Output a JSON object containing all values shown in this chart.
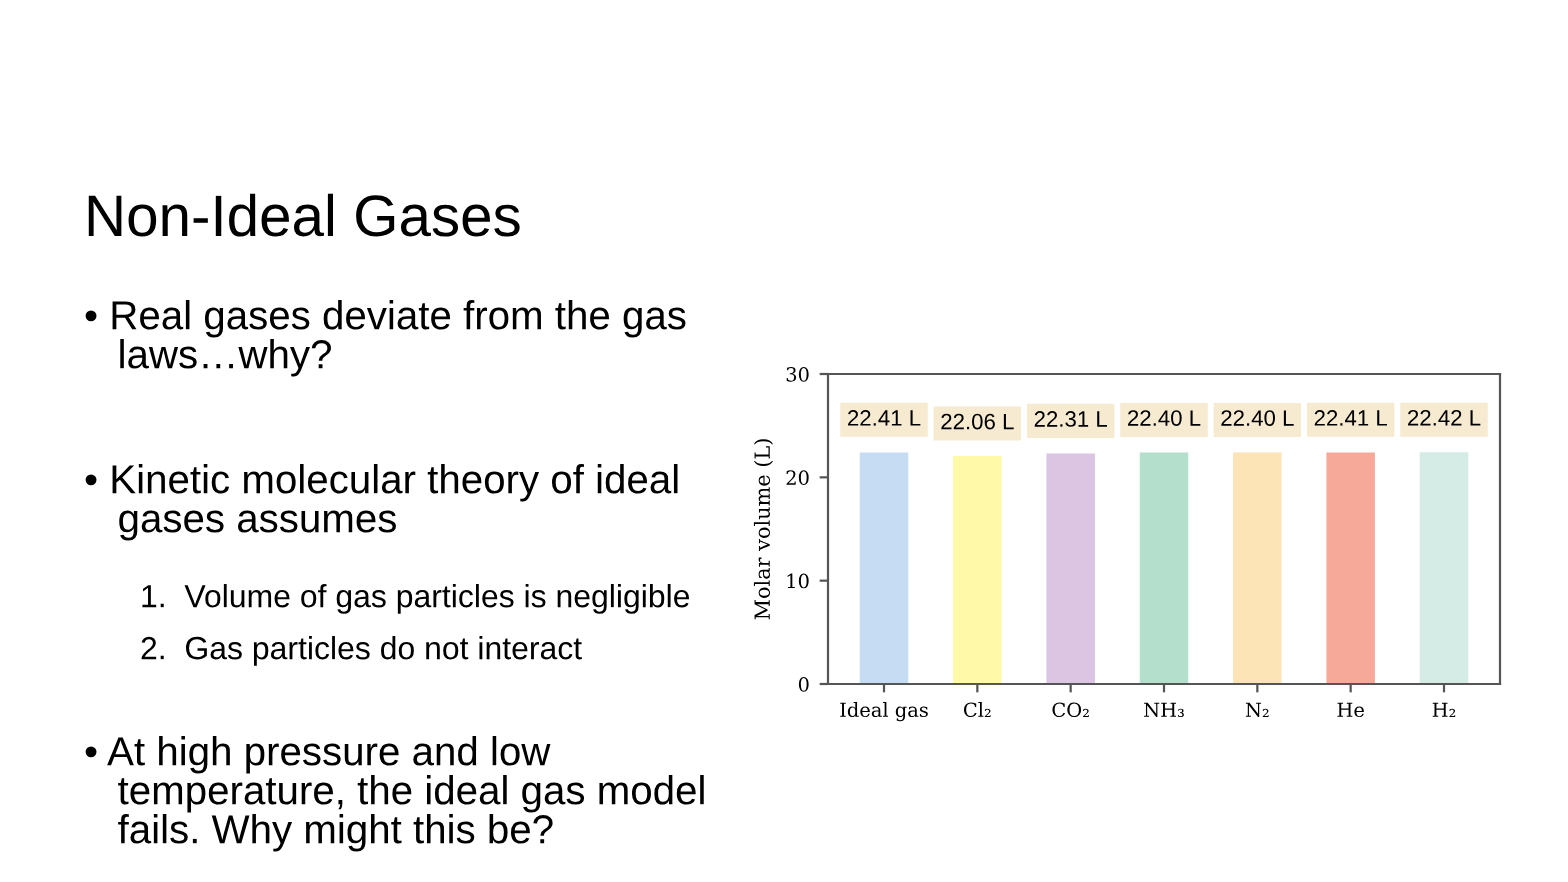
{
  "chart_data": {
    "type": "bar",
    "title": "Non-Ideal Gases",
    "annotations": [
      "• Real gases deviate from the gas\n   laws…why?",
      "• Kinetic molecular theory of ideal\n   gases assumes",
      "1.  Volume of gas particles is negligible",
      "2.  Gas particles do not interact",
      "• At high pressure and low\n   temperature, the ideal gas model\n   fails. Why might this be?"
    ],
    "ylabel": "Molar volume (L)",
    "categories": [
      "Ideal gas",
      "Cl₂",
      "CO₂",
      "NH₃",
      "N₂",
      "He",
      "H₂"
    ],
    "values": [
      22.41,
      22.06,
      22.31,
      22.4,
      22.4,
      22.41,
      22.42
    ],
    "colors": [
      "#c5dcf3",
      "#fff9a8",
      "#dcc4e3",
      "#b3dfcc",
      "#fde4b7",
      "#f6a899",
      "#d5ece6"
    ],
    "value_labels": [
      "22.41 L",
      "22.06 L",
      "22.31 L",
      "22.40 L",
      "22.40 L",
      "22.41 L",
      "22.42 L"
    ],
    "ylim": [
      0,
      30
    ],
    "yticks": [
      0,
      10,
      20,
      30
    ]
  }
}
